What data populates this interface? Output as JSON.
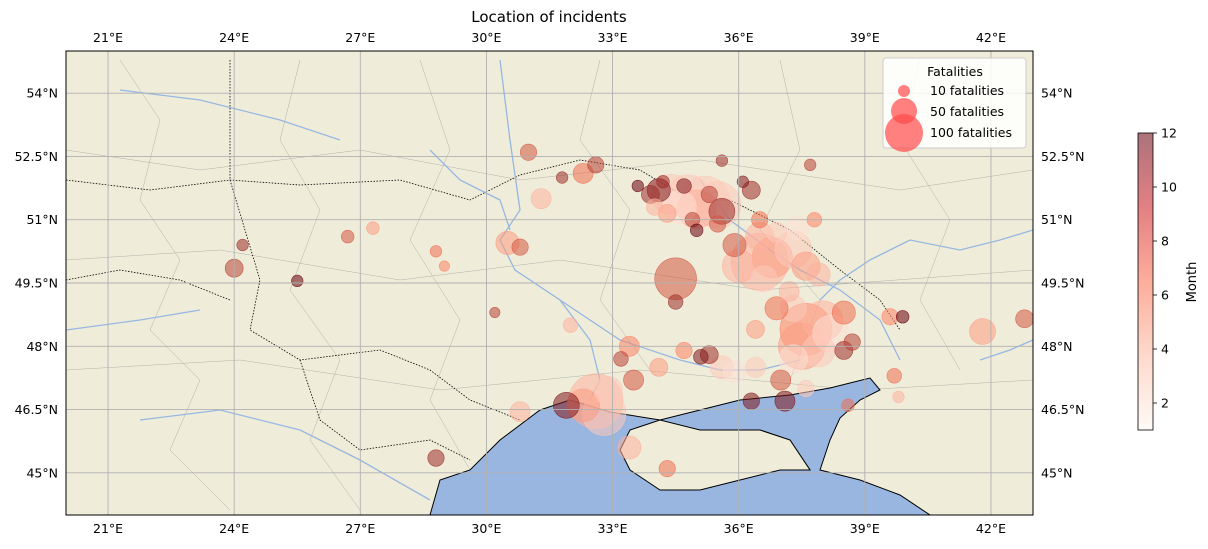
{
  "title": "Location of incidents",
  "colors": {
    "land": "#efedda",
    "sea": "#98b6e0",
    "river": "#97b6e1",
    "grid": "#b0b0b0",
    "point_low": "#fff5f0",
    "point_mid": "#fb7858",
    "point_high": "#67000d"
  },
  "map": {
    "lon_range": [
      20,
      43
    ],
    "lat_range": [
      44,
      55
    ],
    "lon_ticks": [
      "21°E",
      "24°E",
      "27°E",
      "30°E",
      "33°E",
      "36°E",
      "39°E",
      "42°E"
    ],
    "lat_ticks": [
      "45°N",
      "46.5°N",
      "48°N",
      "49.5°N",
      "51°N",
      "52.5°N",
      "54°N"
    ]
  },
  "legend": {
    "title": "Fatalities",
    "items": [
      {
        "label": "10 fatalities",
        "value": 10
      },
      {
        "label": "50 fatalities",
        "value": 50
      },
      {
        "label": "100 fatalities",
        "value": 100
      }
    ]
  },
  "colorbar": {
    "label": "Month",
    "ticks": [
      "2",
      "4",
      "6",
      "8",
      "10",
      "12"
    ],
    "range": [
      1,
      12
    ]
  },
  "incidents": [
    [
      34.4,
      51.6,
      60,
      3
    ],
    [
      34.8,
      51.55,
      70,
      3
    ],
    [
      35.2,
      51.45,
      90,
      3
    ],
    [
      35.5,
      51.35,
      80,
      3
    ],
    [
      35.0,
      51.25,
      55,
      4
    ],
    [
      34.6,
      51.3,
      40,
      2
    ],
    [
      34.1,
      51.7,
      20,
      11
    ],
    [
      33.9,
      51.6,
      12,
      10
    ],
    [
      34.2,
      51.9,
      6,
      10
    ],
    [
      34.7,
      51.8,
      8,
      11
    ],
    [
      35.3,
      51.6,
      10,
      9
    ],
    [
      33.6,
      51.8,
      5,
      12
    ],
    [
      36.3,
      51.7,
      12,
      10
    ],
    [
      36.1,
      51.9,
      5,
      11
    ],
    [
      34.9,
      51.0,
      8,
      9
    ],
    [
      35.0,
      50.75,
      6,
      12
    ],
    [
      35.5,
      50.9,
      10,
      8
    ],
    [
      35.6,
      51.2,
      25,
      10
    ],
    [
      34.3,
      51.15,
      12,
      5
    ],
    [
      34.0,
      51.3,
      10,
      4
    ],
    [
      36.5,
      50.0,
      120,
      4
    ],
    [
      36.8,
      50.1,
      60,
      5
    ],
    [
      37.3,
      50.3,
      50,
      3
    ],
    [
      37.6,
      49.9,
      30,
      5
    ],
    [
      36.0,
      49.9,
      40,
      4
    ],
    [
      37.9,
      49.7,
      20,
      4
    ],
    [
      36.6,
      49.6,
      25,
      3
    ],
    [
      37.2,
      49.3,
      15,
      4
    ],
    [
      37.6,
      48.4,
      100,
      6
    ],
    [
      37.5,
      48.0,
      80,
      5
    ],
    [
      38.0,
      48.6,
      60,
      4
    ],
    [
      38.2,
      48.3,
      50,
      2
    ],
    [
      37.9,
      47.9,
      40,
      3
    ],
    [
      37.3,
      47.7,
      30,
      2
    ],
    [
      38.5,
      48.8,
      20,
      7
    ],
    [
      37.0,
      47.2,
      15,
      8
    ],
    [
      38.5,
      47.9,
      12,
      10
    ],
    [
      37.1,
      46.7,
      15,
      11
    ],
    [
      36.9,
      48.9,
      20,
      7
    ],
    [
      38.7,
      48.1,
      10,
      9
    ],
    [
      32.6,
      46.7,
      110,
      4
    ],
    [
      32.8,
      46.4,
      70,
      3
    ],
    [
      32.3,
      46.6,
      40,
      5
    ],
    [
      31.9,
      46.6,
      25,
      11
    ],
    [
      32.9,
      46.95,
      30,
      3
    ],
    [
      33.5,
      47.2,
      15,
      8
    ],
    [
      34.7,
      47.9,
      10,
      6
    ],
    [
      35.3,
      47.8,
      12,
      10
    ],
    [
      35.6,
      47.5,
      20,
      3
    ],
    [
      35.9,
      47.4,
      18,
      2
    ],
    [
      36.4,
      47.5,
      15,
      3
    ],
    [
      34.1,
      47.5,
      12,
      5
    ],
    [
      35.1,
      47.75,
      8,
      11
    ],
    [
      34.5,
      49.6,
      65,
      8
    ],
    [
      34.5,
      49.05,
      8,
      10
    ],
    [
      30.5,
      50.45,
      20,
      5
    ],
    [
      30.8,
      50.35,
      10,
      8
    ],
    [
      31.3,
      51.5,
      15,
      4
    ],
    [
      30.8,
      46.45,
      15,
      4
    ],
    [
      28.8,
      45.35,
      10,
      10
    ],
    [
      32.0,
      48.5,
      8,
      4
    ],
    [
      33.4,
      48.0,
      15,
      6
    ],
    [
      33.2,
      47.7,
      8,
      9
    ],
    [
      36.3,
      46.7,
      10,
      11
    ],
    [
      34.3,
      45.1,
      10,
      7
    ],
    [
      33.4,
      45.6,
      20,
      4
    ],
    [
      31.0,
      52.6,
      10,
      8
    ],
    [
      32.3,
      52.1,
      15,
      7
    ],
    [
      32.6,
      52.3,
      10,
      9
    ],
    [
      31.8,
      52.0,
      5,
      10
    ],
    [
      35.6,
      52.4,
      5,
      10
    ],
    [
      37.7,
      52.3,
      5,
      9
    ],
    [
      42.8,
      48.65,
      12,
      8
    ],
    [
      41.8,
      48.35,
      25,
      5
    ],
    [
      39.6,
      48.7,
      10,
      6
    ],
    [
      39.7,
      47.3,
      8,
      7
    ],
    [
      39.9,
      48.7,
      6,
      12
    ],
    [
      24.0,
      49.85,
      12,
      9
    ],
    [
      25.5,
      49.55,
      5,
      12
    ],
    [
      24.2,
      50.4,
      5,
      10
    ],
    [
      26.7,
      50.6,
      6,
      8
    ],
    [
      28.8,
      50.25,
      5,
      7
    ],
    [
      29.0,
      49.9,
      4,
      6
    ],
    [
      27.3,
      50.8,
      6,
      5
    ],
    [
      30.2,
      48.8,
      4,
      9
    ],
    [
      38.6,
      46.6,
      6,
      7
    ],
    [
      39.8,
      46.8,
      5,
      4
    ],
    [
      36.5,
      50.6,
      30,
      4
    ],
    [
      35.9,
      50.4,
      20,
      8
    ],
    [
      37.4,
      50.8,
      20,
      2
    ],
    [
      36.9,
      50.7,
      15,
      3
    ],
    [
      36.5,
      51.0,
      10,
      7
    ],
    [
      37.8,
      51.0,
      8,
      6
    ],
    [
      37.3,
      48.9,
      25,
      3
    ],
    [
      36.4,
      48.4,
      12,
      5
    ],
    [
      37.6,
      47.0,
      10,
      3
    ]
  ]
}
